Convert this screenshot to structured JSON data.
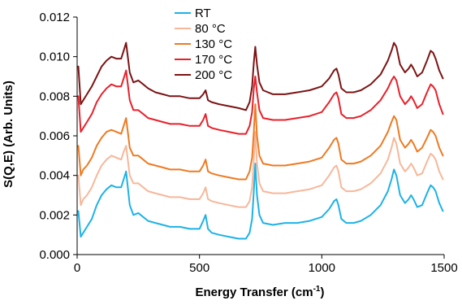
{
  "chart_data": {
    "type": "line",
    "xlabel": "Energy Transfer (cm",
    "xlabel_sup": "-1",
    "xlabel_end": ")",
    "ylabel": "S(Q,E) (Arb. Units)",
    "xlim": [
      0,
      1500
    ],
    "ylim": [
      0,
      0.012
    ],
    "x_ticks": [
      0,
      500,
      1000,
      1500
    ],
    "x_tick_labels": [
      "0",
      "500",
      "1000",
      "1500"
    ],
    "y_ticks": [
      0,
      0.002,
      0.004,
      0.006,
      0.008,
      0.01,
      0.012
    ],
    "y_tick_labels": [
      "0.000",
      "0.002",
      "0.004",
      "0.006",
      "0.008",
      "0.010",
      "0.012"
    ],
    "grid": false,
    "legend_position": "top-center",
    "x": [
      5,
      15,
      25,
      40,
      60,
      80,
      100,
      120,
      140,
      160,
      180,
      190,
      200,
      215,
      230,
      250,
      270,
      290,
      320,
      350,
      380,
      420,
      460,
      500,
      515,
      525,
      535,
      550,
      580,
      620,
      660,
      690,
      705,
      715,
      722,
      728,
      735,
      745,
      760,
      800,
      850,
      900,
      950,
      1000,
      1030,
      1050,
      1060,
      1068,
      1080,
      1100,
      1130,
      1160,
      1200,
      1240,
      1270,
      1285,
      1295,
      1305,
      1320,
      1340,
      1355,
      1365,
      1375,
      1390,
      1410,
      1430,
      1445,
      1455,
      1465,
      1480,
      1495
    ],
    "series": [
      {
        "name": "RT",
        "color": "#1eb2e6",
        "values": [
          0.0022,
          0.0009,
          0.0011,
          0.0014,
          0.0018,
          0.0025,
          0.003,
          0.0033,
          0.0035,
          0.0034,
          0.0034,
          0.0038,
          0.0042,
          0.0025,
          0.002,
          0.0021,
          0.0019,
          0.0017,
          0.0016,
          0.0015,
          0.0014,
          0.0014,
          0.0013,
          0.0013,
          0.0017,
          0.002,
          0.0013,
          0.0011,
          0.001,
          0.0009,
          0.0008,
          0.0008,
          0.0011,
          0.0018,
          0.0032,
          0.0046,
          0.003,
          0.002,
          0.0016,
          0.0015,
          0.0016,
          0.0016,
          0.0017,
          0.0019,
          0.0023,
          0.0027,
          0.0028,
          0.0025,
          0.0018,
          0.0016,
          0.0016,
          0.0017,
          0.002,
          0.0025,
          0.0032,
          0.0038,
          0.0043,
          0.004,
          0.003,
          0.0026,
          0.0028,
          0.003,
          0.0028,
          0.0024,
          0.0025,
          0.0031,
          0.0035,
          0.0034,
          0.0032,
          0.0026,
          0.0022
        ]
      },
      {
        "name": "80 °C",
        "color": "#f7b79a",
        "values": [
          0.004,
          0.0025,
          0.0028,
          0.003,
          0.0034,
          0.004,
          0.0045,
          0.0048,
          0.005,
          0.0049,
          0.0048,
          0.0052,
          0.0055,
          0.004,
          0.0036,
          0.0036,
          0.0034,
          0.0032,
          0.0031,
          0.003,
          0.0029,
          0.0029,
          0.0028,
          0.0028,
          0.0031,
          0.0034,
          0.0028,
          0.0027,
          0.0026,
          0.0025,
          0.0024,
          0.0024,
          0.0027,
          0.0034,
          0.0048,
          0.0062,
          0.0046,
          0.0036,
          0.0032,
          0.0031,
          0.0031,
          0.0032,
          0.0033,
          0.0035,
          0.004,
          0.0044,
          0.0045,
          0.0042,
          0.0034,
          0.0032,
          0.0032,
          0.0033,
          0.0036,
          0.0041,
          0.0048,
          0.0054,
          0.0059,
          0.0056,
          0.0046,
          0.0042,
          0.0044,
          0.0046,
          0.0044,
          0.004,
          0.0041,
          0.0047,
          0.0051,
          0.005,
          0.0048,
          0.0042,
          0.0038
        ]
      },
      {
        "name": "130 °C",
        "color": "#ee7a22",
        "values": [
          0.0055,
          0.004,
          0.0043,
          0.0045,
          0.0049,
          0.0055,
          0.0059,
          0.0062,
          0.0063,
          0.0062,
          0.0061,
          0.0065,
          0.0069,
          0.0054,
          0.005,
          0.005,
          0.0048,
          0.0046,
          0.0045,
          0.0044,
          0.0043,
          0.0043,
          0.0042,
          0.0042,
          0.0045,
          0.0048,
          0.0042,
          0.0041,
          0.004,
          0.0039,
          0.0038,
          0.0038,
          0.0042,
          0.0049,
          0.0062,
          0.0076,
          0.006,
          0.005,
          0.0046,
          0.0045,
          0.0045,
          0.0046,
          0.0047,
          0.0049,
          0.0054,
          0.0058,
          0.0059,
          0.0056,
          0.0048,
          0.0046,
          0.0046,
          0.0047,
          0.005,
          0.0055,
          0.0062,
          0.0067,
          0.007,
          0.0068,
          0.0058,
          0.0054,
          0.0056,
          0.0058,
          0.0056,
          0.0052,
          0.0054,
          0.0059,
          0.0063,
          0.0062,
          0.006,
          0.0054,
          0.005
        ]
      },
      {
        "name": "170 °C",
        "color": "#e8202a",
        "values": [
          0.008,
          0.0062,
          0.0064,
          0.0067,
          0.0071,
          0.0077,
          0.0081,
          0.0084,
          0.0086,
          0.0085,
          0.0085,
          0.0089,
          0.0093,
          0.0078,
          0.0073,
          0.0073,
          0.0071,
          0.0069,
          0.0068,
          0.0067,
          0.0066,
          0.0066,
          0.0065,
          0.0065,
          0.0068,
          0.0071,
          0.0065,
          0.0064,
          0.0063,
          0.0062,
          0.0061,
          0.0061,
          0.0065,
          0.0072,
          0.0084,
          0.009,
          0.0082,
          0.0073,
          0.0069,
          0.0068,
          0.0068,
          0.0069,
          0.007,
          0.0072,
          0.0077,
          0.0081,
          0.0082,
          0.0079,
          0.0071,
          0.0069,
          0.0069,
          0.007,
          0.0073,
          0.0078,
          0.0084,
          0.0088,
          0.009,
          0.0088,
          0.008,
          0.0076,
          0.0078,
          0.008,
          0.0078,
          0.0074,
          0.0076,
          0.0082,
          0.0086,
          0.0085,
          0.0083,
          0.0076,
          0.0071
        ]
      },
      {
        "name": "200 °C",
        "color": "#7c1414",
        "values": [
          0.0095,
          0.0076,
          0.0078,
          0.0081,
          0.0085,
          0.009,
          0.0095,
          0.0098,
          0.01,
          0.0099,
          0.0099,
          0.0103,
          0.0107,
          0.0092,
          0.0087,
          0.0088,
          0.0086,
          0.0084,
          0.0082,
          0.0081,
          0.008,
          0.008,
          0.0079,
          0.0079,
          0.0081,
          0.0083,
          0.0078,
          0.0077,
          0.0076,
          0.0075,
          0.0074,
          0.0073,
          0.0077,
          0.0085,
          0.0097,
          0.0105,
          0.0096,
          0.0087,
          0.0083,
          0.0081,
          0.0081,
          0.0082,
          0.0083,
          0.0085,
          0.0089,
          0.0093,
          0.0094,
          0.0091,
          0.0084,
          0.0082,
          0.0082,
          0.0083,
          0.0086,
          0.0091,
          0.0098,
          0.0103,
          0.0107,
          0.0105,
          0.0096,
          0.0092,
          0.0094,
          0.0096,
          0.0094,
          0.009,
          0.0092,
          0.0098,
          0.0103,
          0.0102,
          0.0099,
          0.0093,
          0.0089
        ]
      }
    ]
  }
}
